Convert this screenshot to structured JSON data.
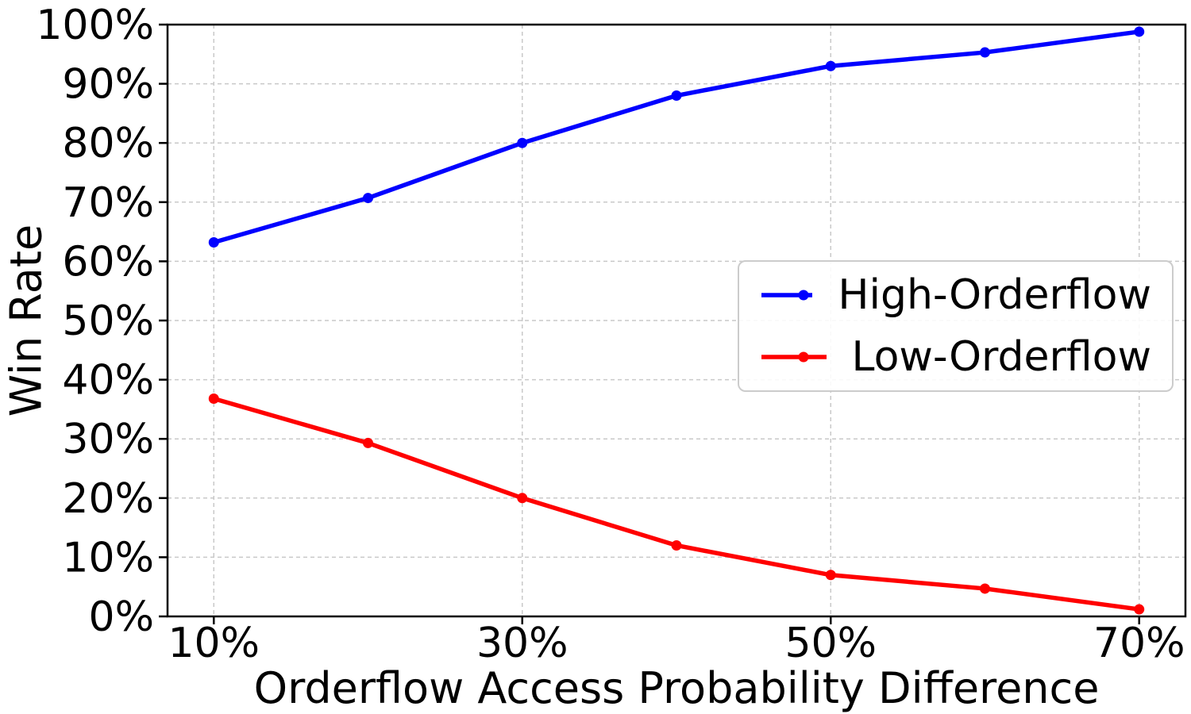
{
  "figure": {
    "background": "#ffffff",
    "axis_color": "#000000",
    "grid_color": "#c9c9c9"
  },
  "chart_data": {
    "type": "line",
    "x": [
      10,
      20,
      30,
      40,
      50,
      60,
      70
    ],
    "series": [
      {
        "name": "High-Orderflow",
        "color": "#0000ff",
        "values": [
          63.2,
          70.7,
          80.0,
          88.0,
          93.0,
          95.3,
          98.8
        ]
      },
      {
        "name": "Low-Orderflow",
        "color": "#ff0000",
        "values": [
          36.8,
          29.3,
          20.0,
          12.0,
          7.0,
          4.7,
          1.2
        ]
      }
    ],
    "title": "",
    "xlabel": "Orderflow Access Probability Difference",
    "ylabel": "Win Rate",
    "x_ticks": [
      10,
      30,
      50,
      70
    ],
    "y_ticks": [
      0,
      10,
      20,
      30,
      40,
      50,
      60,
      70,
      80,
      90,
      100
    ],
    "tick_suffix": "%",
    "xlim": [
      7,
      73
    ],
    "ylim": [
      0,
      100
    ],
    "grid": true,
    "grid_style": "dashed",
    "legend_position": "center-right",
    "legend_entries": [
      "High-Orderflow",
      "Low-Orderflow"
    ]
  }
}
